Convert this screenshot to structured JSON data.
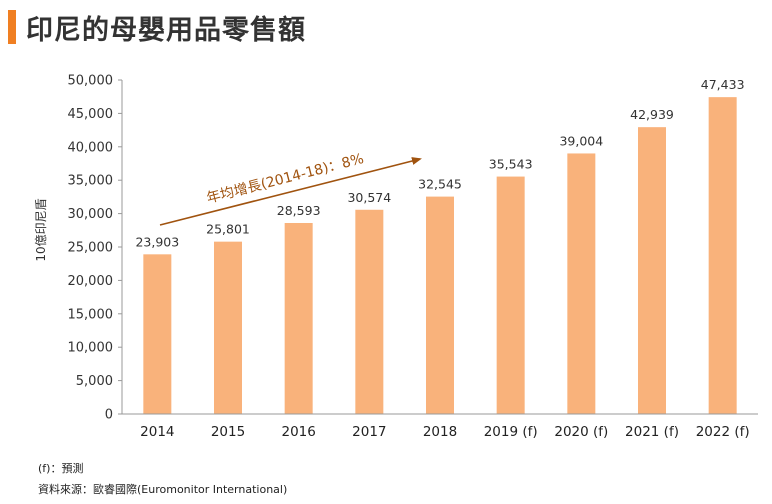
{
  "title": "印尼的母嬰用品零售額",
  "footnotes": {
    "forecast": "(f)：預測",
    "source": "資料來源：歐睿國際(Euromonitor International)"
  },
  "colors": {
    "bar": "#f9b27b",
    "annotation": "#a0530f",
    "accent": "#f07f22"
  },
  "chart_data": {
    "type": "bar",
    "categories": [
      "2014",
      "2015",
      "2016",
      "2017",
      "2018",
      "2019 (f)",
      "2020 (f)",
      "2021 (f)",
      "2022 (f)"
    ],
    "values": [
      23903,
      25801,
      28593,
      30574,
      32545,
      35543,
      39004,
      42939,
      47433
    ],
    "value_labels": [
      "23,903",
      "25,801",
      "28,593",
      "30,574",
      "32,545",
      "35,543",
      "39,004",
      "42,939",
      "47,433"
    ],
    "ylabel": "10億印尼盾",
    "ylim": [
      0,
      50000
    ],
    "yticks": [
      0,
      5000,
      10000,
      15000,
      20000,
      25000,
      30000,
      35000,
      40000,
      45000,
      50000
    ],
    "ytick_labels": [
      "0",
      "5,000",
      "10,000",
      "15,000",
      "20,000",
      "25,000",
      "30,000",
      "35,000",
      "40,000",
      "45,000",
      "50,000"
    ],
    "annotation": "年均增長(2014-18)：8%",
    "grid": false
  }
}
